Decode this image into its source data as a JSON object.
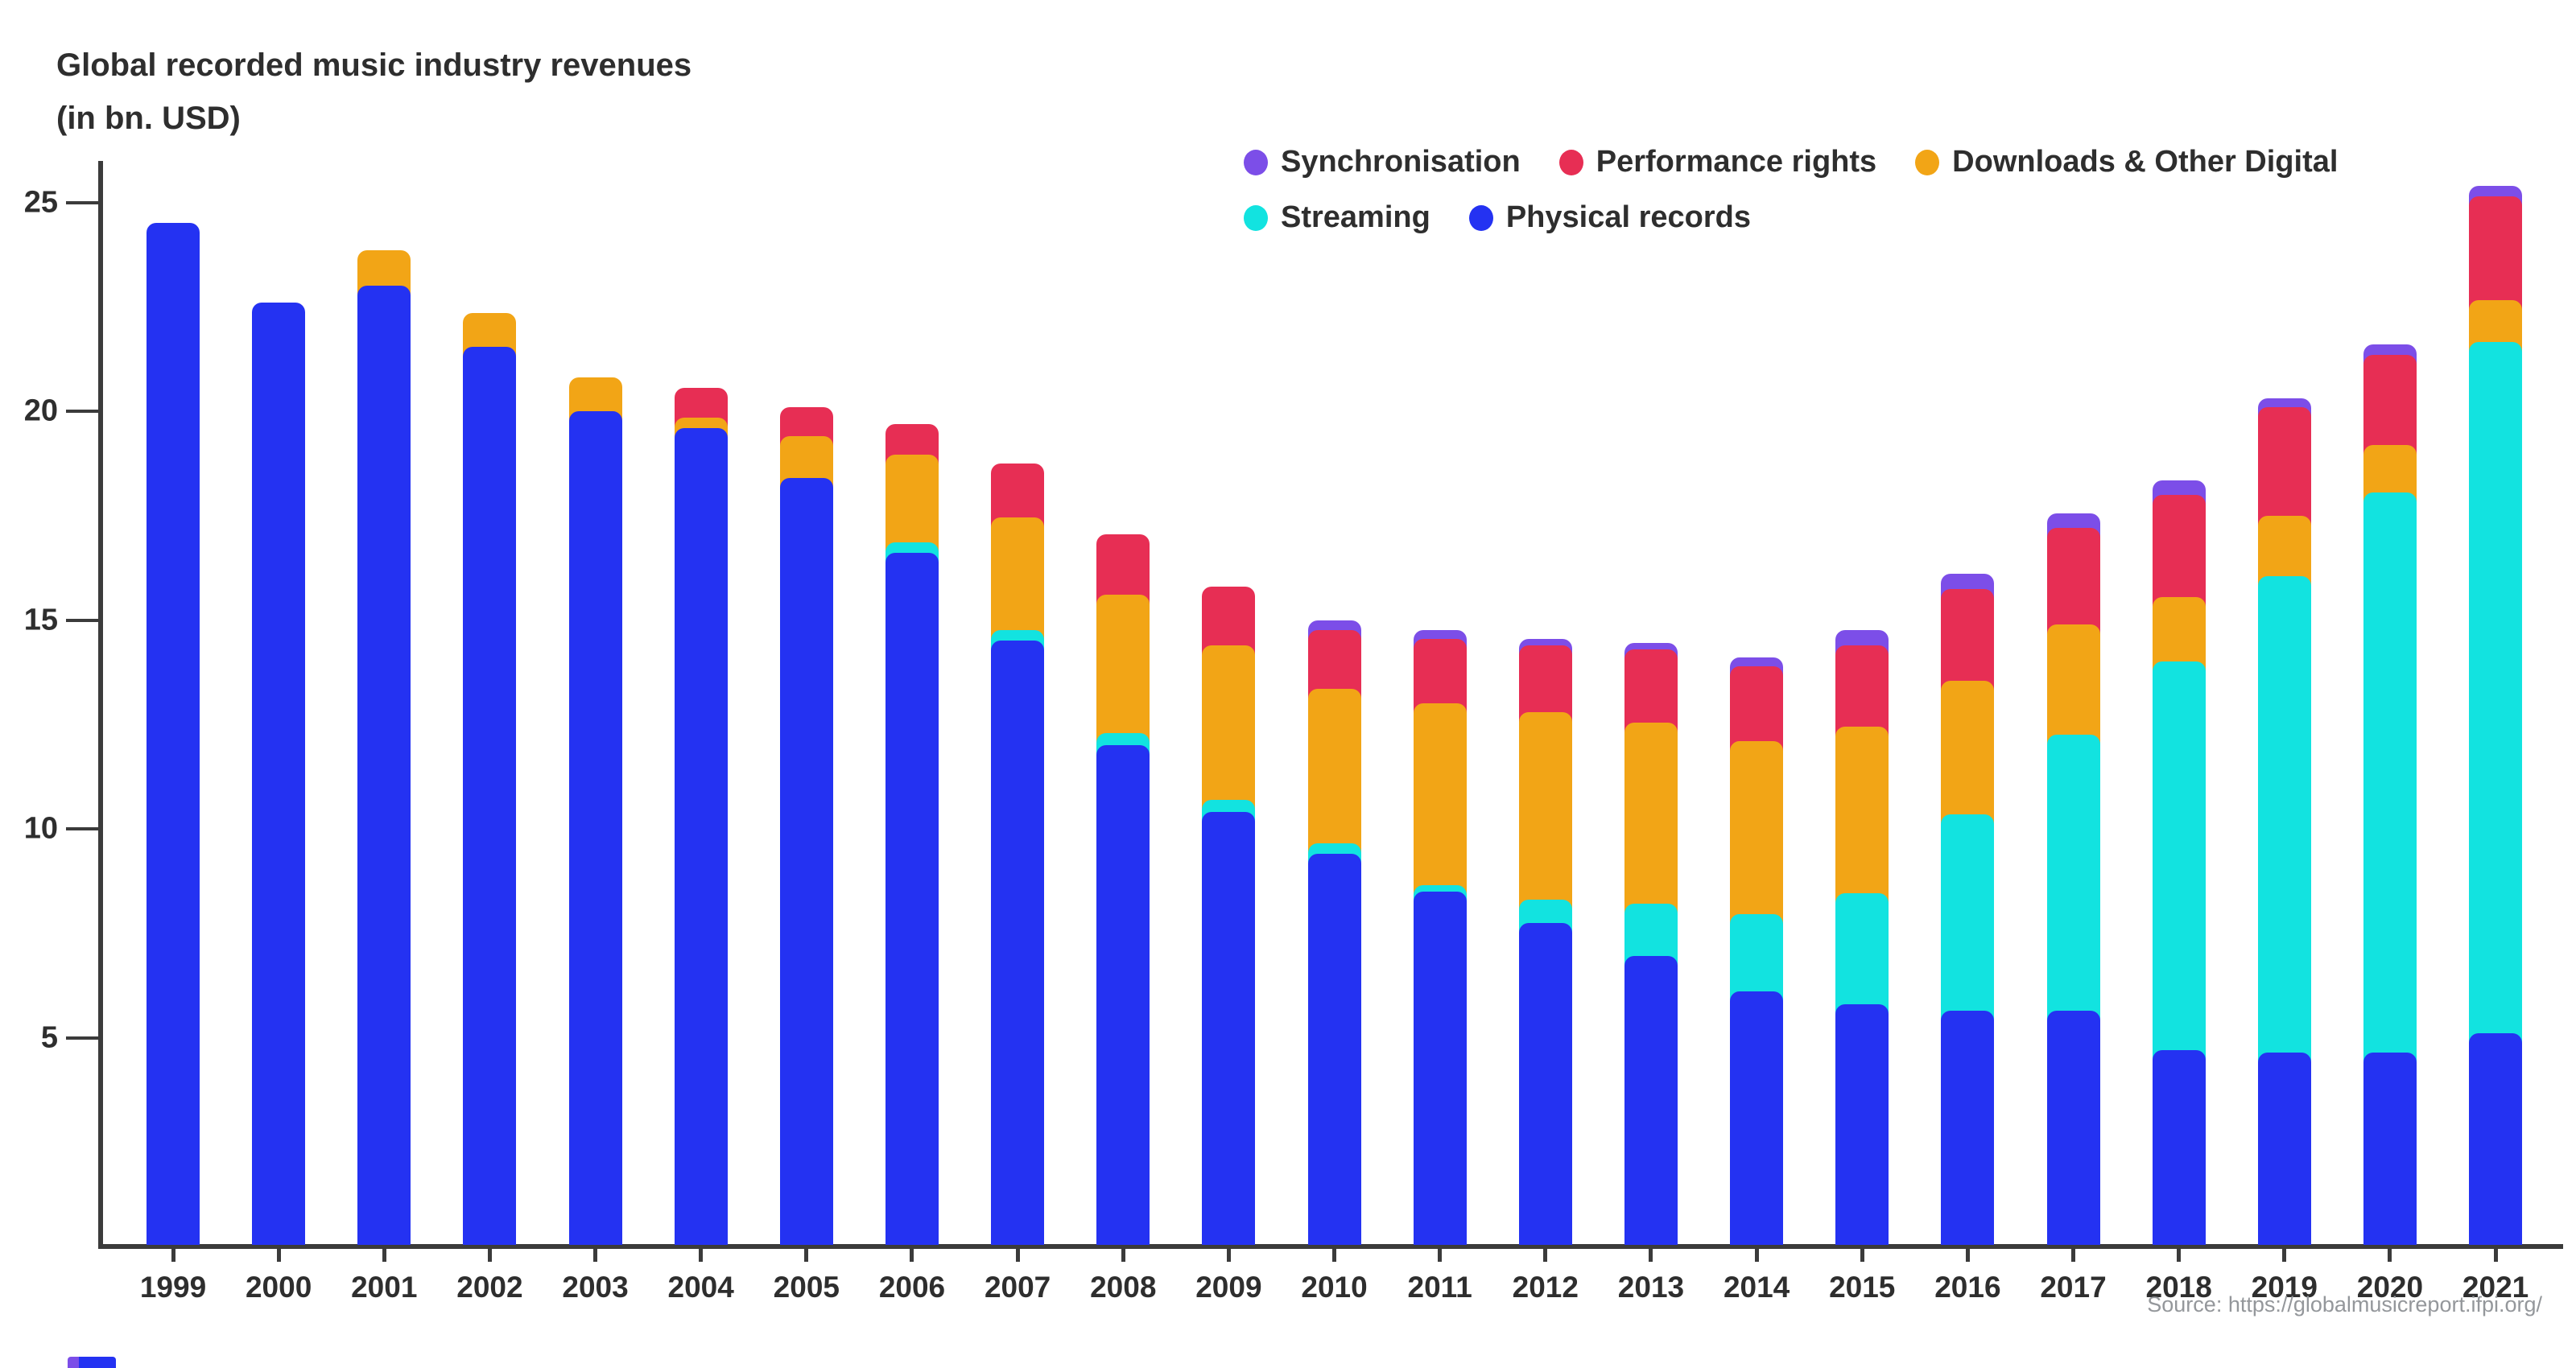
{
  "title": {
    "line1": "Global recorded music industry revenues",
    "line2": "(in bn. USD)"
  },
  "source": "Source: https://globalmusicreport.ifpi.org/",
  "colors": {
    "axis": "#3b3b3b",
    "text": "#2e2e2e",
    "source_text": "#94979b"
  },
  "chart_data": {
    "type": "bar",
    "stacked": true,
    "title": "Global recorded music industry revenues (in bn. USD)",
    "xlabel": "",
    "ylabel": "",
    "ylim": [
      0,
      26
    ],
    "yticks": [
      5,
      10,
      15,
      20,
      25
    ],
    "grid": false,
    "legend_position": "top-right",
    "categories": [
      "1999",
      "2000",
      "2001",
      "2002",
      "2003",
      "2004",
      "2005",
      "2006",
      "2007",
      "2008",
      "2009",
      "2010",
      "2011",
      "2012",
      "2013",
      "2014",
      "2015",
      "2016",
      "2017",
      "2018",
      "2019",
      "2020",
      "2021"
    ],
    "series": [
      {
        "name": "Physical records",
        "color": "#2432F2",
        "values": [
          24.5,
          22.6,
          23.0,
          21.55,
          20.0,
          19.6,
          18.4,
          16.6,
          14.5,
          12.0,
          10.4,
          9.4,
          8.5,
          7.75,
          6.95,
          6.1,
          5.8,
          5.65,
          5.65,
          4.7,
          4.65,
          4.65,
          5.1
        ]
      },
      {
        "name": "Streaming",
        "color": "#12E3E0",
        "values": [
          0,
          0,
          0,
          0,
          0,
          0,
          0,
          0.25,
          0.25,
          0.3,
          0.3,
          0.25,
          0.15,
          0.55,
          1.25,
          1.85,
          2.65,
          4.7,
          6.6,
          9.3,
          11.4,
          13.4,
          16.55
        ]
      },
      {
        "name": "Downloads & Other Digital",
        "color": "#F2A516",
        "values": [
          0,
          0,
          0.85,
          0.8,
          0.8,
          0.25,
          1.0,
          2.1,
          2.7,
          3.3,
          3.7,
          3.7,
          4.35,
          4.5,
          4.35,
          4.15,
          4.0,
          3.2,
          2.65,
          1.55,
          1.45,
          1.15,
          1.0
        ]
      },
      {
        "name": "Performance rights",
        "color": "#E72E54",
        "values": [
          0,
          0,
          0,
          0,
          0,
          0.7,
          0.7,
          0.75,
          1.3,
          1.45,
          1.4,
          1.4,
          1.55,
          1.6,
          1.75,
          1.8,
          1.95,
          2.2,
          2.3,
          2.45,
          2.6,
          2.15,
          2.5
        ]
      },
      {
        "name": "Synchronisation",
        "color": "#7C4EE8",
        "values": [
          0,
          0,
          0,
          0,
          0,
          0,
          0,
          0,
          0,
          0,
          0,
          0.25,
          0.2,
          0.15,
          0.15,
          0.2,
          0.35,
          0.35,
          0.35,
          0.35,
          0.2,
          0.25,
          0.25
        ]
      }
    ],
    "legend_rows": [
      [
        "Synchronisation",
        "Performance rights",
        "Downloads & Other Digital"
      ],
      [
        "Streaming",
        "Physical records"
      ]
    ]
  }
}
